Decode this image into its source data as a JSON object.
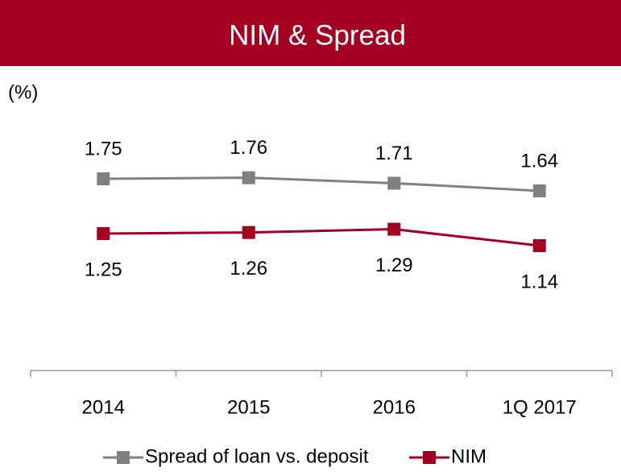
{
  "chart_data": {
    "type": "line",
    "title": "NIM & Spread",
    "y_label": "(%)",
    "categories": [
      "2014",
      "2015",
      "2016",
      "1Q 2017"
    ],
    "series": [
      {
        "name": "Spread of loan vs. deposit",
        "color": "#808080",
        "values": [
          1.75,
          1.76,
          1.71,
          1.64
        ],
        "label_position": "above"
      },
      {
        "name": "NIM",
        "color": "#a50021",
        "values": [
          1.25,
          1.26,
          1.29,
          1.14
        ],
        "label_position": "below"
      }
    ],
    "ylim": [
      0,
      2.5
    ],
    "banner_color": "#a50021",
    "legend": "bottom"
  }
}
